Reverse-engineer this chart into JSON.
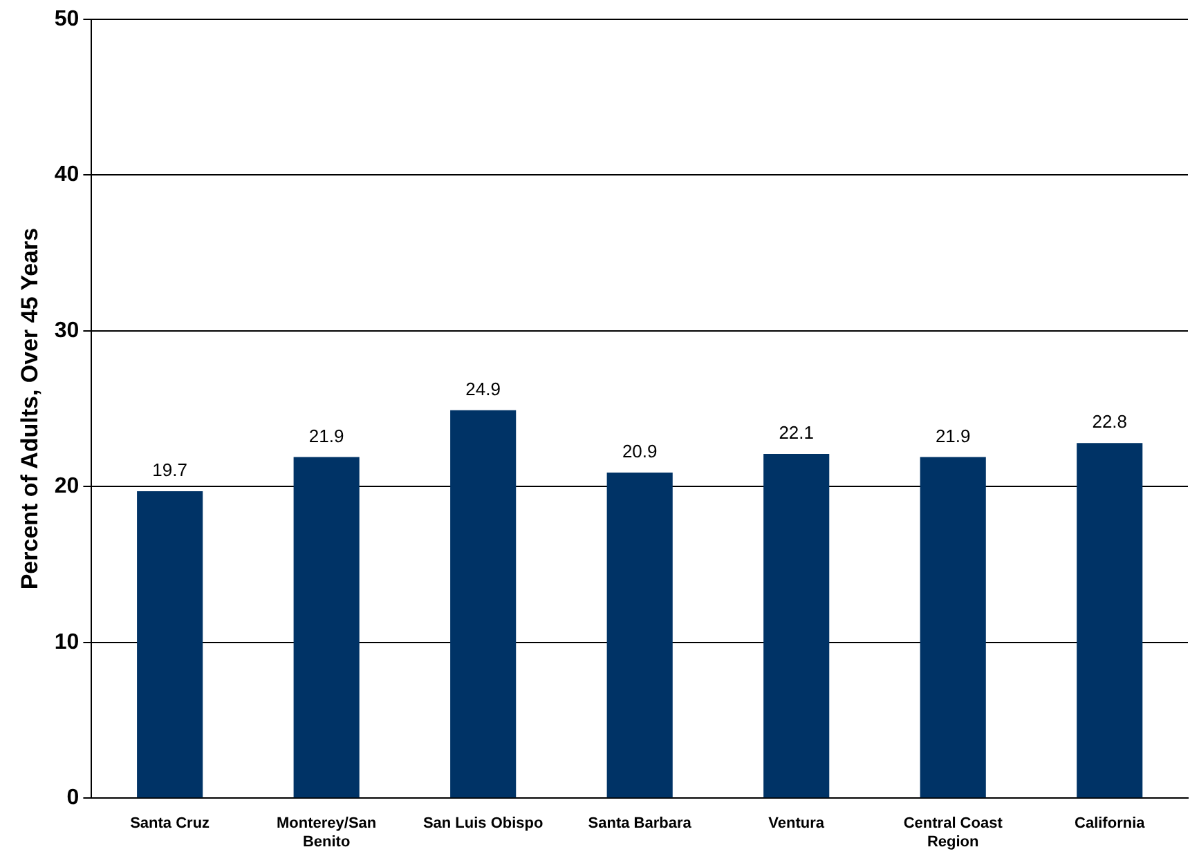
{
  "chart_data": {
    "type": "bar",
    "ylabel": "Percent of Adults, Over 45 Years",
    "categories": [
      "Santa Cruz",
      "Monterey/San Benito",
      "San Luis Obispo",
      "Santa Barbara",
      "Ventura",
      "Central Coast Region",
      "California"
    ],
    "values": [
      19.7,
      21.9,
      24.9,
      20.9,
      22.1,
      21.9,
      22.8
    ],
    "color": "#003366",
    "ylim": [
      0,
      50
    ],
    "yticks": [
      0,
      10,
      20,
      30,
      40,
      50
    ],
    "grid": "y",
    "legend": false,
    "data_labels": true
  }
}
